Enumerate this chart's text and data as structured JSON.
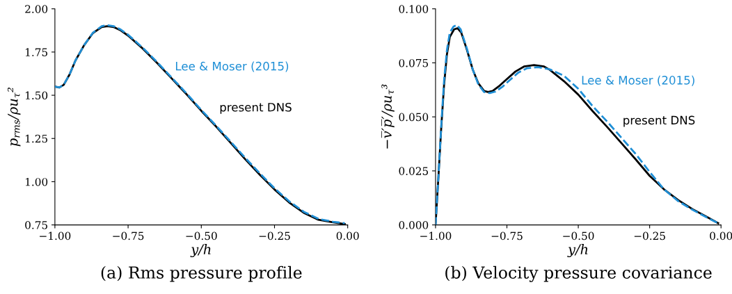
{
  "chart_data": [
    {
      "type": "line",
      "xlabel": "y/h",
      "ylabel": "p$_{rms}$/ρu$_{τ}$²",
      "annotations": [
        "(a) Rms pressure profile"
      ],
      "xlim": [
        -1,
        0
      ],
      "ylim": [
        0.75,
        2.0
      ],
      "xticks": [
        {
          "value": -1,
          "label": "−1.00"
        },
        {
          "value": -0.75,
          "label": "−0.75"
        },
        {
          "value": -0.5,
          "label": "−0.50"
        },
        {
          "value": -0.25,
          "label": "−0.25"
        },
        {
          "value": 0,
          "label": "0.00"
        }
      ],
      "yticks": [
        {
          "value": 0.75,
          "label": "0.75"
        },
        {
          "value": 1.0,
          "label": "1.00"
        },
        {
          "value": 1.25,
          "label": "1.25"
        },
        {
          "value": 1.5,
          "label": "1.50"
        },
        {
          "value": 1.75,
          "label": "1.75"
        },
        {
          "value": 2.0,
          "label": "2.00"
        }
      ],
      "grid": false,
      "legend": false,
      "series": [
        {
          "name": "present DNS",
          "color": "#000000",
          "line_style": "solid",
          "x": [
            -1,
            -0.985,
            -0.97,
            -0.95,
            -0.93,
            -0.9,
            -0.87,
            -0.84,
            -0.82,
            -0.8,
            -0.775,
            -0.75,
            -0.7,
            -0.65,
            -0.6,
            -0.55,
            -0.5,
            -0.45,
            -0.4,
            -0.35,
            -0.3,
            -0.25,
            -0.2,
            -0.15,
            -0.1,
            -0.05,
            -0.01
          ],
          "values": [
            1.55,
            1.545,
            1.56,
            1.62,
            1.7,
            1.79,
            1.86,
            1.895,
            1.9,
            1.895,
            1.875,
            1.845,
            1.77,
            1.685,
            1.595,
            1.505,
            1.41,
            1.32,
            1.225,
            1.13,
            1.04,
            0.955,
            0.88,
            0.82,
            0.78,
            0.765,
            0.755
          ]
        },
        {
          "name": "Lee & Moser (2015)",
          "color": "#1f8fd6",
          "line_style": "dashed",
          "x": [
            -1,
            -0.985,
            -0.97,
            -0.95,
            -0.93,
            -0.9,
            -0.87,
            -0.84,
            -0.82,
            -0.8,
            -0.775,
            -0.75,
            -0.7,
            -0.65,
            -0.6,
            -0.55,
            -0.5,
            -0.45,
            -0.4,
            -0.35,
            -0.3,
            -0.25,
            -0.2,
            -0.15,
            -0.1,
            -0.05,
            -0.01
          ],
          "values": [
            1.55,
            1.545,
            1.56,
            1.62,
            1.7,
            1.79,
            1.862,
            1.9,
            1.905,
            1.9,
            1.88,
            1.85,
            1.775,
            1.69,
            1.6,
            1.51,
            1.415,
            1.325,
            1.232,
            1.138,
            1.048,
            0.962,
            0.887,
            0.826,
            0.785,
            0.768,
            0.76
          ]
        }
      ]
    },
    {
      "type": "line",
      "xlabel": "y/h",
      "ylabel": "−v̅′p̅′/ρu$_{τ}$³",
      "annotations": [
        "(b) Velocity pressure covariance"
      ],
      "xlim": [
        -1,
        0
      ],
      "ylim": [
        0,
        0.1
      ],
      "xticks": [
        {
          "value": -1,
          "label": "−1.00"
        },
        {
          "value": -0.75,
          "label": "−0.75"
        },
        {
          "value": -0.5,
          "label": "−0.50"
        },
        {
          "value": -0.25,
          "label": "−0.25"
        },
        {
          "value": 0,
          "label": "0.00"
        }
      ],
      "yticks": [
        {
          "value": 0,
          "label": "0.000"
        },
        {
          "value": 0.025,
          "label": "0.025"
        },
        {
          "value": 0.05,
          "label": "0.050"
        },
        {
          "value": 0.075,
          "label": "0.075"
        },
        {
          "value": 0.1,
          "label": "0.100"
        }
      ],
      "grid": false,
      "legend": false,
      "series": [
        {
          "name": "present DNS",
          "color": "#000000",
          "line_style": "solid",
          "x": [
            -1,
            -0.99,
            -0.98,
            -0.97,
            -0.96,
            -0.95,
            -0.935,
            -0.923,
            -0.91,
            -0.89,
            -0.87,
            -0.85,
            -0.83,
            -0.816,
            -0.8,
            -0.775,
            -0.75,
            -0.72,
            -0.69,
            -0.655,
            -0.62,
            -0.6,
            -0.55,
            -0.5,
            -0.45,
            -0.4,
            -0.35,
            -0.3,
            -0.25,
            -0.2,
            -0.15,
            -0.125,
            -0.1,
            -0.05,
            -0.01
          ],
          "values": [
            0,
            0.022,
            0.045,
            0.065,
            0.079,
            0.087,
            0.0905,
            0.091,
            0.089,
            0.081,
            0.072,
            0.0655,
            0.062,
            0.0615,
            0.062,
            0.0645,
            0.0675,
            0.071,
            0.0733,
            0.074,
            0.0733,
            0.0718,
            0.0665,
            0.0603,
            0.0527,
            0.0455,
            0.038,
            0.0305,
            0.0227,
            0.0165,
            0.0115,
            0.0094,
            0.0073,
            0.0037,
            0.0008
          ]
        },
        {
          "name": "Lee & Moser (2015)",
          "color": "#1f8fd6",
          "line_style": "dashed",
          "x": [
            -1,
            -0.99,
            -0.98,
            -0.97,
            -0.96,
            -0.95,
            -0.937,
            -0.925,
            -0.912,
            -0.89,
            -0.87,
            -0.85,
            -0.83,
            -0.81,
            -0.79,
            -0.765,
            -0.74,
            -0.71,
            -0.68,
            -0.64,
            -0.6,
            -0.55,
            -0.5,
            -0.45,
            -0.4,
            -0.35,
            -0.3,
            -0.25,
            -0.2,
            -0.15,
            -0.1,
            -0.05,
            -0.01
          ],
          "values": [
            0,
            0.022,
            0.046,
            0.067,
            0.081,
            0.089,
            0.0918,
            0.0925,
            0.0905,
            0.0815,
            0.072,
            0.065,
            0.0615,
            0.061,
            0.0617,
            0.064,
            0.067,
            0.0705,
            0.0725,
            0.073,
            0.072,
            0.069,
            0.063,
            0.055,
            0.048,
            0.0405,
            0.033,
            0.0245,
            0.0165,
            0.011,
            0.007,
            0.0035,
            0.0008
          ]
        }
      ]
    }
  ]
}
